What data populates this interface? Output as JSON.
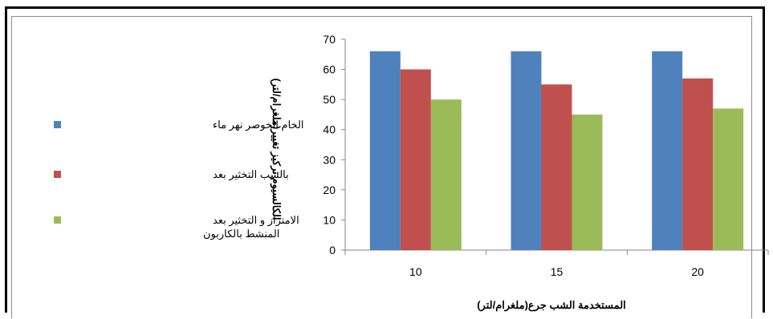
{
  "chart_data": {
    "type": "bar",
    "categories": [
      "10",
      "15",
      "20"
    ],
    "series": [
      {
        "name": "الخام الخوصر نهر ماء",
        "values": [
          66,
          66,
          66
        ],
        "color": "#4f81bd"
      },
      {
        "name": "بالشب التخثير بعد",
        "values": [
          60,
          55,
          57
        ],
        "color": "#c0504d"
      },
      {
        "name": "الامتزاز و التخثير بعد المنشط بالكاربون",
        "values": [
          50,
          45,
          47
        ],
        "color": "#9bbb59"
      }
    ],
    "legend_lines": [
      [
        "الخام الخوصر نهر ماء"
      ],
      [
        "بالشب التخثير بعد"
      ],
      [
        "الامتزاز و التخثير بعد",
        "المنشط بالكاربون"
      ]
    ],
    "xlabel": "المستخدمة الشب جرع(ملغرام/لتر)",
    "ylabel": "الكالسيوم تركيز تغيير(ملغرام/لتر)",
    "ylim": [
      0,
      70
    ],
    "yticks": [
      "0",
      "10",
      "20",
      "30",
      "40",
      "50",
      "60",
      "70"
    ],
    "legend_position": "left",
    "grid": false
  }
}
